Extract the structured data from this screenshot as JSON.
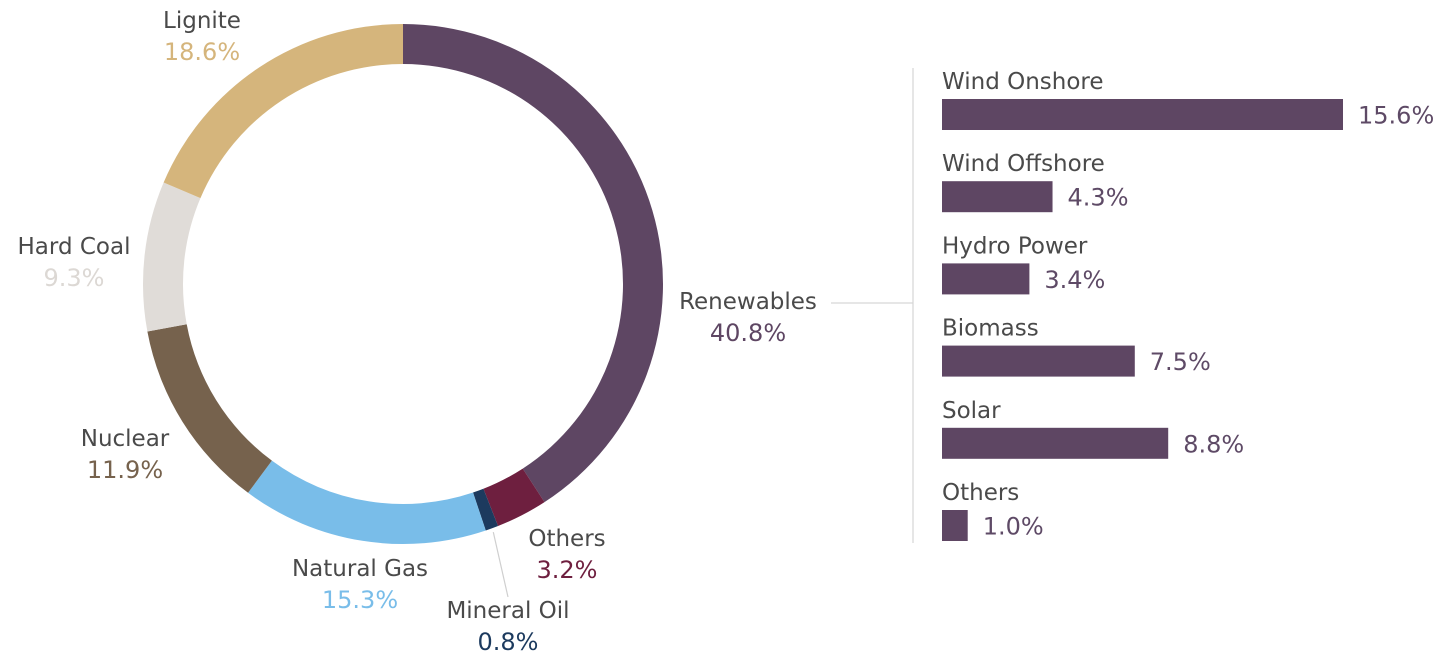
{
  "chart_data": [
    {
      "type": "pie",
      "slices": [
        {
          "name": "Renewables",
          "value": 40.8,
          "value_label": "40.8%",
          "color": "#5e4663"
        },
        {
          "name": "Others",
          "value": 3.2,
          "value_label": "3.2%",
          "color": "#6e1f3f"
        },
        {
          "name": "Mineral Oil",
          "value": 0.8,
          "value_label": "0.8%",
          "color": "#1c3a5e"
        },
        {
          "name": "Natural Gas",
          "value": 15.3,
          "value_label": "15.3%",
          "color": "#79bde9"
        },
        {
          "name": "Nuclear",
          "value": 11.9,
          "value_label": "11.9%",
          "color": "#76624d"
        },
        {
          "name": "Hard Coal",
          "value": 9.3,
          "value_label": "9.3%",
          "color": "#e0dcd8"
        },
        {
          "name": "Lignite",
          "value": 18.6,
          "value_label": "18.6%",
          "color": "#d5b57c"
        }
      ]
    },
    {
      "type": "bar",
      "orientation": "horizontal",
      "categories": [
        "Wind Onshore",
        "Wind Offshore",
        "Hydro Power",
        "Biomass",
        "Solar",
        "Others"
      ],
      "values": [
        15.6,
        4.3,
        3.4,
        7.5,
        8.8,
        1.0
      ],
      "value_labels": [
        "15.6%",
        "4.3%",
        "3.4%",
        "7.5%",
        "8.8%",
        "1.0%"
      ],
      "color": "#5e4663",
      "xlim": [
        0,
        15.6
      ]
    }
  ]
}
